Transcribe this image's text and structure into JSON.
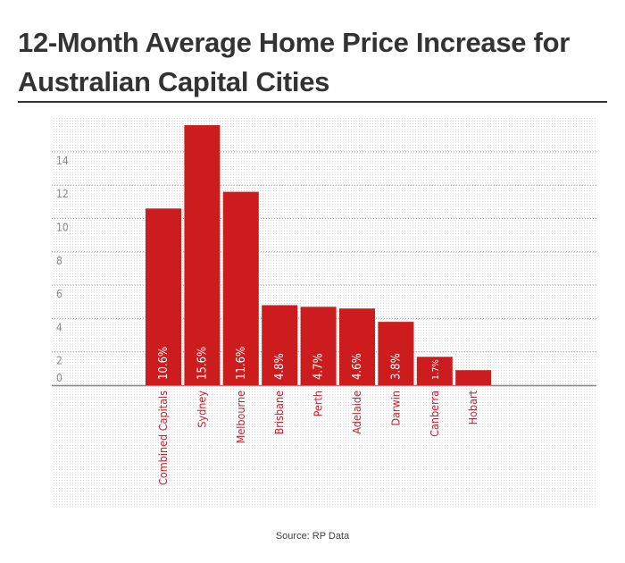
{
  "chart_data": {
    "type": "bar",
    "title": "12-Month Average Home Price Increase for Australian Capital Cities",
    "categories": [
      "Combined Capitals",
      "Sydney",
      "Melbourne",
      "Brisbane",
      "Perth",
      "Adelaide",
      "Darwin",
      "Canberra",
      "Hobart"
    ],
    "values": [
      10.6,
      15.6,
      11.6,
      4.8,
      4.7,
      4.6,
      3.8,
      1.7,
      0.9
    ],
    "data_labels": [
      "10.6%",
      "15.6%",
      "11.6%",
      "4.8%",
      "4.7%",
      "4.6%",
      "3.8%",
      "1.7%",
      ""
    ],
    "yticks": [
      0,
      2,
      4,
      6,
      8,
      10,
      12,
      14
    ],
    "ylim": [
      0,
      16
    ],
    "xlabel": "",
    "ylabel": "",
    "grid": true,
    "bar_color": "#cc1c1e",
    "label_color": "#c8202a",
    "source": "Source: RP Data"
  }
}
